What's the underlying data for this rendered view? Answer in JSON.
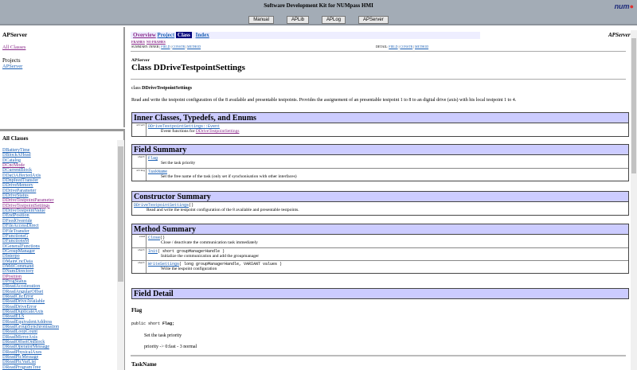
{
  "header": {
    "title": "Software Development Kit for NUMpass HMI",
    "buttons": [
      "Manual",
      "APLib",
      "APLog",
      "APServer"
    ],
    "logo": "num"
  },
  "left_top": {
    "title": "APServer",
    "all_classes": "All Classes",
    "projects_label": "Projects",
    "project": "APServer"
  },
  "left_bottom": {
    "title": "All Classes",
    "classes": [
      {
        "n": "DBatteryTime",
        "v": false
      },
      {
        "n": "DBlockAHead",
        "v": false
      },
      {
        "n": "DCatalog",
        "v": false
      },
      {
        "n": "DCncMode",
        "v": true
      },
      {
        "n": "DCurrentBlock",
        "v": false
      },
      {
        "n": "DDat3AffectedAxis",
        "v": false
      },
      {
        "n": "DDnpfeedTransfer",
        "v": false
      },
      {
        "n": "DDriveMemory",
        "v": false
      },
      {
        "n": "DDriveParameter",
        "v": false
      },
      {
        "n": "DDriveStatus",
        "v": false
      },
      {
        "n": "DDriveTestpointParameter",
        "v": true
      },
      {
        "n": "DDriveTestpointSettings",
        "v": true
      },
      {
        "n": "DDriveTestpointValue",
        "v": false
      },
      {
        "n": "DEndPosition",
        "v": false
      },
      {
        "n": "DFeedOverride",
        "v": false
      },
      {
        "n": "DFileAccessDirect",
        "v": false
      },
      {
        "n": "DFileTransfer",
        "v": false
      },
      {
        "n": "DFunctionsG",
        "v": false
      },
      {
        "n": "DFunctionsM",
        "v": false
      },
      {
        "n": "DGeneralFunctions",
        "v": false
      },
      {
        "n": "DGroupManager",
        "v": false
      },
      {
        "n": "DInterpo",
        "v": false
      },
      {
        "n": "DMainCncData",
        "v": false
      },
      {
        "n": "DMdiCommand",
        "v": false
      },
      {
        "n": "DNumDirectory",
        "v": false
      },
      {
        "n": "DPosition",
        "v": true
      },
      {
        "n": "DProgStatus",
        "v": false
      },
      {
        "n": "DReadAcceleration",
        "v": false
      },
      {
        "n": "DReadAngularOffset",
        "v": false
      },
      {
        "n": "DReadCncError",
        "v": false
      },
      {
        "n": "DReadDriveAvailable",
        "v": false
      },
      {
        "n": "DReadDriveError",
        "v": false
      },
      {
        "n": "DReadDuplicateAxis",
        "v": false
      },
      {
        "n": "DReadELS",
        "v": false
      },
      {
        "n": "DReadEquivalentAddress",
        "v": false
      },
      {
        "n": "DReadGroupSynchronisation",
        "v": false
      },
      {
        "n": "DReadLoopCount",
        "v": false
      },
      {
        "n": "DReadMirrorAxis",
        "v": false
      },
      {
        "n": "DReadOffsetOnBlock",
        "v": false
      },
      {
        "n": "DReadOperatorMessage",
        "v": false
      },
      {
        "n": "DReadPhysicalAxes",
        "v": false
      },
      {
        "n": "DReadPlcMessage",
        "v": false
      },
      {
        "n": "DReadPlcVarList",
        "v": false
      },
      {
        "n": "DReadProgramTree",
        "v": false
      }
    ]
  },
  "main": {
    "nav": [
      "Overview",
      "Project",
      "Class",
      "Index"
    ],
    "selected_nav": "Class",
    "right_title": "APServer",
    "frames": "FRAMES",
    "no_frames": "NO FRAMES",
    "summary_label": "SUMMARY: INNER |",
    "summary_links": [
      "FIELD",
      "CONSTR",
      "METHOD"
    ],
    "detail_label": "DETAIL:",
    "detail_links": [
      "FIELD",
      "CONSTR",
      "METHOD"
    ],
    "package": "APServer",
    "class_title": "Class DDriveTestpointSettings",
    "class_decl_prefix": "class",
    "class_decl_name": "DDriveTestpointSettings",
    "description": "Read and write the testpoint configuration of the 8 available and presentable testpoints. Provides the assignement of an presentable testpoint 1 to 8 to an digital drive (axis) with his local testpoint 1 to 4.",
    "inner": {
      "title": "Inner Classes, Typedefs, and Enums",
      "rows": [
        {
          "mod": "struct",
          "name": "DDriveTestpointSettings::Event",
          "sig": "",
          "desc_prefix": "Event functions for ",
          "desc_link": "DDriveTestpointSettings"
        }
      ]
    },
    "fields": {
      "title": "Field Summary",
      "rows": [
        {
          "mod": "short",
          "name": "Flag",
          "sig": "",
          "desc": "Set the task priority"
        },
        {
          "mod": "string",
          "name": "TaskName",
          "sig": "",
          "desc": "Set the free name of the task (only set if synchonisation with other interfaces)"
        }
      ]
    },
    "constructors": {
      "title": "Constructor Summary",
      "rows": [
        {
          "name": "DDriveTestpointSettings",
          "sig": "()",
          "desc": "Read and write the testpoint configuration of the 8 available and presentable testpoints."
        }
      ]
    },
    "methods": {
      "title": "Method Summary",
      "rows": [
        {
          "mod": "void",
          "name": "Close",
          "sig": "()",
          "desc": "Close / deactivate the communication task immediately"
        },
        {
          "mod": "short",
          "name": "Init",
          "sig": "( short groupManagerHandle )",
          "desc": "Initialize the communication and add the groupmanager"
        },
        {
          "mod": "short",
          "name": "WriteSettings",
          "sig": "( long groupManagerHandle, VARIANT values )",
          "desc": "Write the tespoint configuration"
        }
      ]
    },
    "field_detail": {
      "title": "Field Detail",
      "flag_name": "Flag",
      "flag_decl_prefix": "public short ",
      "flag_decl_name": "Flag;",
      "flag_desc": "Set the task priority",
      "flag_note": "priority -> 0:fast - 3 normal",
      "taskname": "TaskName"
    }
  }
}
